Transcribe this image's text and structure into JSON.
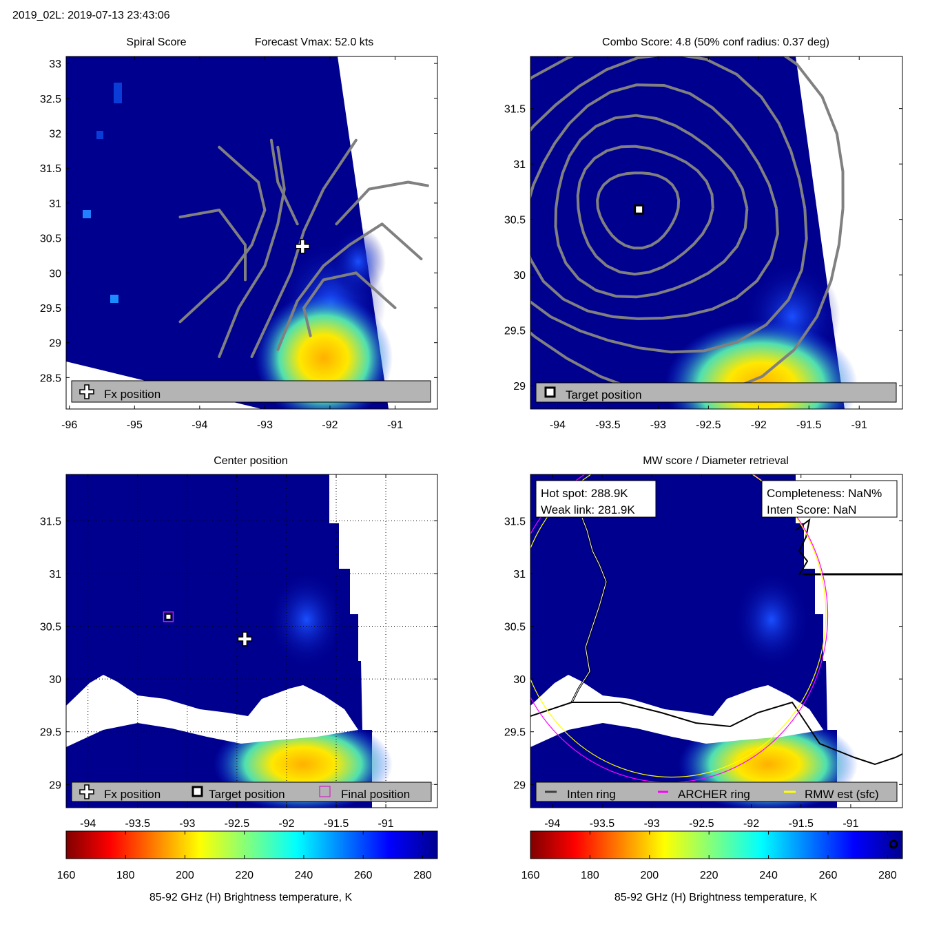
{
  "header": {
    "title": "2019_02L: 2019-07-13 23:43:06"
  },
  "colors": {
    "ocean_dark": "#00008f",
    "ocean_mid": "#0a1db8",
    "gray_contour": "#808080",
    "legend_bg": "#b4b4b4",
    "final_marker": "#d020c0",
    "archer_ring": "#ff00ff",
    "rmw_ring": "#ffff00",
    "inten_ring": "#404040"
  },
  "panels": {
    "spiral": {
      "title_left": "Spiral Score",
      "title_right": "Forecast Vmax: 52.0 kts",
      "legend": {
        "fx": "Fx position"
      }
    },
    "combo": {
      "title": "Combo Score: 4.8  (50% conf radius: 0.37 deg)",
      "legend": {
        "target": "Target position"
      }
    },
    "center": {
      "title": "Center position",
      "legend": {
        "fx": "Fx position",
        "target": "Target position",
        "final": "Final position"
      }
    },
    "mw": {
      "title": "MW score / Diameter retrieval",
      "hot_spot": "Hot spot: 288.9K",
      "weak_link": "Weak link: 281.9K",
      "completeness": "Completeness: NaN%",
      "inten_score": "Inten Score: NaN",
      "legend": {
        "inten": "Inten ring",
        "archer": "ARCHER ring",
        "rmw": "RMW est (sfc)"
      }
    }
  },
  "chart_data": [
    {
      "type": "heatmap",
      "title": "Spiral Score",
      "subtitle": "Forecast Vmax: 52.0 kts",
      "xlim": [
        -96.05,
        -90.35
      ],
      "ylim": [
        28.05,
        33.1
      ],
      "xticks": [
        -96,
        -95,
        -94,
        -93,
        -92,
        -91
      ],
      "xtick_labels": [
        "-96",
        "-95",
        "-94",
        "-93",
        "-92",
        "-91"
      ],
      "yticks": [
        28.5,
        29,
        29.5,
        30,
        30.5,
        31,
        31.5,
        32,
        32.5,
        33
      ],
      "ytick_labels": [
        "28.5",
        "29",
        "29.5",
        "30",
        "30.5",
        "31",
        "31.5",
        "32",
        "32.5",
        "33"
      ],
      "fx_position": [
        -92.42,
        30.38
      ],
      "swath_edge": [
        [
          -92.1,
          33.1
        ],
        [
          -90.95,
          28.05
        ]
      ],
      "contours": [
        [
          [
            -94.3,
            29.3
          ],
          [
            -93.6,
            29.9
          ],
          [
            -93.2,
            30.4
          ],
          [
            -93.0,
            30.9
          ],
          [
            -93.1,
            31.3
          ],
          [
            -93.7,
            31.8
          ]
        ],
        [
          [
            -93.7,
            28.8
          ],
          [
            -93.4,
            29.5
          ],
          [
            -93.0,
            30.1
          ],
          [
            -92.8,
            30.7
          ],
          [
            -92.7,
            31.2
          ],
          [
            -92.8,
            31.8
          ]
        ],
        [
          [
            -93.2,
            28.8
          ],
          [
            -92.9,
            29.4
          ],
          [
            -92.6,
            30.0
          ],
          [
            -92.4,
            30.6
          ],
          [
            -92.1,
            31.2
          ],
          [
            -91.6,
            31.9
          ]
        ],
        [
          [
            -92.8,
            28.9
          ],
          [
            -92.5,
            29.6
          ],
          [
            -92.1,
            30.1
          ],
          [
            -91.7,
            30.4
          ],
          [
            -91.2,
            30.7
          ],
          [
            -90.6,
            30.2
          ]
        ],
        [
          [
            -92.3,
            29.1
          ],
          [
            -92.4,
            29.5
          ],
          [
            -92.1,
            29.9
          ],
          [
            -91.6,
            30.0
          ],
          [
            -91.0,
            29.5
          ]
        ],
        [
          [
            -94.3,
            30.8
          ],
          [
            -93.7,
            30.9
          ],
          [
            -93.3,
            30.4
          ],
          [
            -93.3,
            29.9
          ]
        ],
        [
          [
            -92.9,
            31.9
          ],
          [
            -92.8,
            31.3
          ],
          [
            -92.5,
            30.7
          ]
        ],
        [
          [
            -91.9,
            30.7
          ],
          [
            -91.4,
            31.2
          ],
          [
            -90.8,
            31.3
          ],
          [
            -90.5,
            31.25
          ]
        ]
      ]
    },
    {
      "type": "heatmap",
      "title": "Combo Score: 4.8  (50% conf radius: 0.37 deg)",
      "xlim": [
        -94.27,
        -90.57
      ],
      "ylim": [
        28.79,
        31.97
      ],
      "xticks": [
        -94,
        -93.5,
        -93,
        -92.5,
        -92,
        -91.5,
        -91
      ],
      "xtick_labels": [
        "-94",
        "-93.5",
        "-93",
        "-92.5",
        "-92",
        "-91.5",
        "-91"
      ],
      "yticks": [
        29,
        29.5,
        30,
        30.5,
        31,
        31.5
      ],
      "ytick_labels": [
        "29",
        "29.5",
        "30",
        "30.5",
        "31",
        "31.5"
      ],
      "target_position": [
        -93.19,
        30.59
      ],
      "contour_center": [
        -93.2,
        30.6
      ],
      "contour_radii_deg": [
        0.37,
        0.62,
        0.88,
        1.15,
        1.45,
        1.8
      ],
      "swath_edge": [
        [
          -91.6,
          31.97
        ],
        [
          -91.15,
          28.79
        ]
      ]
    },
    {
      "type": "heatmap",
      "title": "Center position",
      "xlim": [
        -94.22,
        -90.48
      ],
      "ylim": [
        28.78,
        31.94
      ],
      "xticks": [
        -94,
        -93.5,
        -93,
        -92.5,
        -92,
        -91.5,
        -91
      ],
      "xtick_labels": [
        "-94",
        "-93.5",
        "-93",
        "-92.5",
        "-92",
        "-91.5",
        "-91"
      ],
      "yticks": [
        29,
        29.5,
        30,
        30.5,
        31,
        31.5
      ],
      "ytick_labels": [
        "29",
        "29.5",
        "30",
        "30.5",
        "31",
        "31.5"
      ],
      "grid": true,
      "fx_position": [
        -92.42,
        30.38
      ],
      "target_position": [
        -93.19,
        30.59
      ],
      "final_position": [
        -93.19,
        30.59
      ]
    },
    {
      "type": "heatmap",
      "title": "MW score / Diameter retrieval",
      "xlim": [
        -94.22,
        -90.48
      ],
      "ylim": [
        28.78,
        31.94
      ],
      "xticks": [
        -94,
        -93.5,
        -93,
        -92.5,
        -92,
        -91.5,
        -91
      ],
      "xtick_labels": [
        "-94",
        "-93.5",
        "-93",
        "-92.5",
        "-92",
        "-91.5",
        "-91"
      ],
      "yticks": [
        29,
        29.5,
        30,
        30.5,
        31,
        31.5
      ],
      "ytick_labels": [
        "29",
        "29.5",
        "30",
        "30.5",
        "31",
        "31.5"
      ],
      "ring_center": [
        -92.8,
        30.6
      ],
      "ring_radius_deg": 1.55
    }
  ],
  "colorbars": {
    "label": "85-92 GHz (H) Brightness temperature, K",
    "range": [
      160,
      285
    ],
    "ticks": [
      160,
      180,
      200,
      220,
      240,
      260,
      280
    ],
    "tick_labels": [
      "160",
      "180",
      "200",
      "220",
      "240",
      "260",
      "280"
    ]
  }
}
